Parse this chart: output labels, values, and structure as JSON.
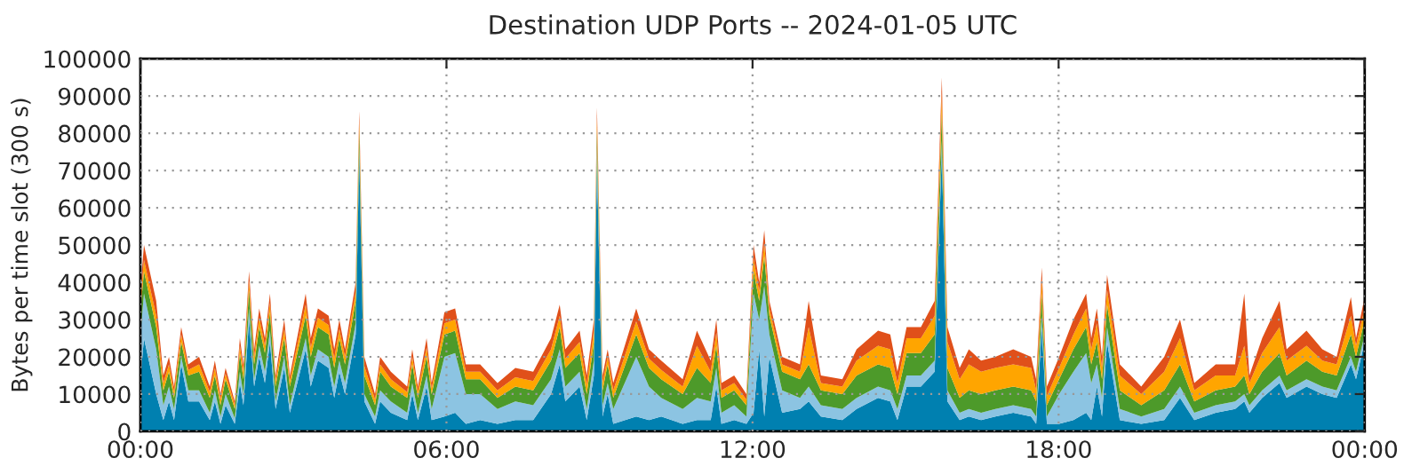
{
  "chart_data": {
    "type": "area",
    "stacked": true,
    "title": "Destination UDP Ports -- 2024-01-05 UTC",
    "ylabel": "Bytes per time slot (300 s)",
    "x": [
      0.0,
      0.07,
      0.31,
      0.45,
      0.56,
      0.66,
      0.8,
      0.94,
      1.15,
      1.36,
      1.46,
      1.57,
      1.67,
      1.85,
      1.95,
      2.02,
      2.13,
      2.23,
      2.33,
      2.44,
      2.54,
      2.65,
      2.82,
      2.93,
      3.24,
      3.34,
      3.48,
      3.69,
      3.8,
      3.9,
      4.01,
      4.22,
      4.29,
      4.39,
      4.6,
      4.7,
      4.91,
      5.23,
      5.33,
      5.44,
      5.61,
      5.71,
      5.96,
      6.17,
      6.38,
      6.66,
      7.0,
      7.35,
      7.7,
      8.05,
      8.22,
      8.33,
      8.61,
      8.75,
      8.89,
      8.95,
      9.06,
      9.16,
      9.27,
      9.72,
      9.97,
      10.21,
      10.63,
      10.91,
      11.18,
      11.29,
      11.39,
      11.64,
      11.88,
      12.02,
      12.13,
      12.23,
      12.33,
      12.58,
      12.93,
      13.1,
      13.34,
      13.76,
      14.04,
      14.46,
      14.7,
      14.84,
      15.02,
      15.3,
      15.57,
      15.71,
      15.82,
      16.06,
      16.24,
      16.48,
      16.76,
      17.11,
      17.46,
      17.56,
      17.67,
      17.77,
      18.01,
      18.29,
      18.54,
      18.64,
      18.75,
      18.85,
      18.95,
      19.2,
      19.62,
      20.07,
      20.38,
      20.66,
      21.08,
      21.46,
      21.64,
      21.74,
      21.99,
      22.33,
      22.47,
      22.86,
      23.17,
      23.45,
      23.73,
      23.83,
      24.0
    ],
    "series": [
      {
        "color": "#0080b0",
        "values": [
          14000,
          25000,
          10000,
          3000,
          8000,
          3000,
          18000,
          8000,
          8000,
          3000,
          8000,
          2000,
          7000,
          2000,
          13000,
          7000,
          30000,
          12000,
          20000,
          13000,
          24000,
          6000,
          17000,
          5000,
          22000,
          12000,
          19000,
          17000,
          9000,
          16000,
          10000,
          26000,
          74000,
          8000,
          2000,
          8000,
          5000,
          3000,
          10000,
          3000,
          12000,
          3000,
          4000,
          5000,
          2000,
          3000,
          2000,
          3000,
          3000,
          10000,
          18000,
          8000,
          12000,
          3000,
          15000,
          72000,
          4000,
          10000,
          2000,
          4000,
          3000,
          4000,
          2000,
          3000,
          3000,
          12000,
          2000,
          3000,
          2000,
          5000,
          22000,
          4000,
          20000,
          5000,
          6000,
          8000,
          4000,
          3000,
          6000,
          9000,
          8000,
          3000,
          12000,
          12000,
          16000,
          75000,
          8000,
          3000,
          4000,
          3000,
          4000,
          5000,
          4000,
          2000,
          28000,
          2000,
          2000,
          3000,
          5000,
          3000,
          12000,
          4000,
          24000,
          3000,
          2000,
          3000,
          9000,
          3000,
          5000,
          6000,
          8000,
          5000,
          9000,
          13000,
          9000,
          12000,
          10000,
          9000,
          18000,
          14000,
          24000
        ]
      },
      {
        "color": "#8cc4e2",
        "values": [
          12000,
          12000,
          12000,
          4000,
          4000,
          3000,
          2000,
          3000,
          3000,
          2000,
          3000,
          2000,
          3000,
          1500,
          3000,
          3000,
          3000,
          2000,
          3000,
          3000,
          3000,
          2000,
          3000,
          2000,
          3000,
          3000,
          3000,
          3000,
          3000,
          3000,
          3000,
          3000,
          2000,
          2000,
          2000,
          3000,
          3000,
          2000,
          3000,
          2000,
          3000,
          3000,
          16000,
          16000,
          8000,
          7000,
          4000,
          5000,
          4000,
          4000,
          4000,
          4000,
          4000,
          3000,
          4000,
          4000,
          3000,
          3000,
          4000,
          16000,
          9000,
          5000,
          4000,
          6000,
          5000,
          5000,
          3000,
          4000,
          2000,
          32000,
          8000,
          35000,
          6000,
          6000,
          3000,
          4000,
          3000,
          3000,
          3000,
          3000,
          3000,
          3000,
          3000,
          3000,
          3000,
          3000,
          3000,
          2000,
          2000,
          2000,
          2000,
          2000,
          2000,
          2000,
          3000,
          2000,
          8000,
          13000,
          16000,
          10000,
          6000,
          5000,
          4000,
          3000,
          2000,
          3000,
          3000,
          2000,
          2000,
          2000,
          2000,
          2000,
          2000,
          2000,
          2000,
          2000,
          2000,
          2000,
          2000,
          2000,
          2000
        ]
      },
      {
        "color": "#4d9a2a",
        "values": [
          6000,
          6000,
          6000,
          4000,
          4000,
          3000,
          4000,
          4000,
          5000,
          4000,
          4000,
          3000,
          4000,
          2500,
          5000,
          4000,
          5000,
          4000,
          5000,
          5000,
          5000,
          4000,
          5000,
          5000,
          6000,
          5000,
          6000,
          6000,
          5000,
          6000,
          5000,
          6000,
          5000,
          5000,
          3000,
          5000,
          4000,
          4000,
          5000,
          4000,
          5000,
          4000,
          6000,
          6000,
          4000,
          4000,
          3000,
          4000,
          4000,
          5000,
          6000,
          5000,
          5000,
          4000,
          5000,
          5000,
          4000,
          5000,
          3000,
          6000,
          5000,
          5000,
          4000,
          8000,
          5000,
          6000,
          4000,
          4000,
          3000,
          6000,
          5000,
          8000,
          5000,
          5000,
          5000,
          6000,
          4000,
          4000,
          6000,
          6000,
          6000,
          4000,
          6000,
          6000,
          7000,
          8000,
          6000,
          4000,
          5000,
          5000,
          5000,
          5000,
          5000,
          4000,
          6000,
          3000,
          4000,
          6000,
          7000,
          5000,
          6000,
          5000,
          6000,
          5000,
          3000,
          5000,
          6000,
          3000,
          4000,
          4000,
          5000,
          3000,
          5000,
          6000,
          4000,
          5000,
          4000,
          4000,
          6000,
          4000,
          4000
        ]
      },
      {
        "color": "#ffa500",
        "values": [
          3000,
          3000,
          3000,
          2000,
          2000,
          1500,
          2000,
          1500,
          2000,
          1500,
          2000,
          1500,
          1500,
          1000,
          2000,
          2000,
          2500,
          2000,
          2500,
          2000,
          2500,
          1500,
          2500,
          1500,
          3000,
          2500,
          2500,
          2500,
          2500,
          2500,
          2000,
          2500,
          2500,
          2500,
          1500,
          2000,
          2000,
          1500,
          2000,
          1500,
          2500,
          1500,
          3000,
          3000,
          2000,
          2000,
          2000,
          2500,
          2500,
          3000,
          3000,
          2500,
          3000,
          2500,
          3000,
          3000,
          2000,
          2000,
          2000,
          3500,
          2500,
          2500,
          2000,
          6000,
          3000,
          3500,
          2000,
          2000,
          1500,
          3500,
          2500,
          3500,
          2000,
          2000,
          2000,
          10000,
          2000,
          2000,
          4000,
          5000,
          5000,
          3000,
          4000,
          4000,
          5000,
          5000,
          7000,
          5000,
          7000,
          6000,
          6000,
          6000,
          6000,
          3000,
          4000,
          2500,
          3000,
          4000,
          5000,
          4000,
          5000,
          3000,
          4000,
          4000,
          3000,
          5000,
          7000,
          3000,
          4000,
          3000,
          8000,
          3000,
          5000,
          7000,
          4000,
          4000,
          3000,
          3000,
          5000,
          3000,
          3000
        ]
      },
      {
        "color": "#e0501a",
        "values": [
          3000,
          4000,
          4000,
          2000,
          2000,
          1500,
          2000,
          1500,
          2000,
          1500,
          2000,
          1500,
          1500,
          1000,
          2000,
          2000,
          2500,
          2000,
          2500,
          2000,
          2500,
          1500,
          2500,
          1500,
          3000,
          2500,
          2500,
          2500,
          2500,
          2500,
          2000,
          2500,
          2500,
          2500,
          1500,
          2000,
          2000,
          1500,
          2000,
          1500,
          2500,
          1500,
          3000,
          3000,
          2000,
          2000,
          2000,
          2500,
          2500,
          3000,
          3000,
          2500,
          3000,
          2500,
          3000,
          3000,
          2000,
          2000,
          2000,
          3500,
          2500,
          2500,
          2000,
          4000,
          3000,
          3500,
          2000,
          2000,
          1500,
          3500,
          2500,
          3500,
          2000,
          2000,
          2000,
          7000,
          2000,
          2000,
          3000,
          4000,
          4000,
          3000,
          3000,
          3000,
          4000,
          4000,
          4000,
          3000,
          4000,
          3000,
          3000,
          4000,
          3000,
          3000,
          3000,
          2500,
          3000,
          4000,
          4000,
          3000,
          4000,
          3000,
          4000,
          3000,
          2000,
          4000,
          5000,
          2000,
          3000,
          3000,
          14000,
          2000,
          4000,
          7000,
          3000,
          4000,
          3000,
          2000,
          5000,
          2000,
          3000
        ]
      }
    ],
    "xlim": [
      0,
      24
    ],
    "xticks": [
      {
        "value": 0,
        "label": "00:00"
      },
      {
        "value": 6,
        "label": "06:00"
      },
      {
        "value": 12,
        "label": "12:00"
      },
      {
        "value": 18,
        "label": "18:00"
      },
      {
        "value": 24,
        "label": "00:00"
      }
    ],
    "ylim": [
      0,
      100000
    ],
    "yticks": [
      0,
      10000,
      20000,
      30000,
      40000,
      50000,
      60000,
      70000,
      80000,
      90000,
      100000
    ],
    "grid": true,
    "legend": false
  }
}
